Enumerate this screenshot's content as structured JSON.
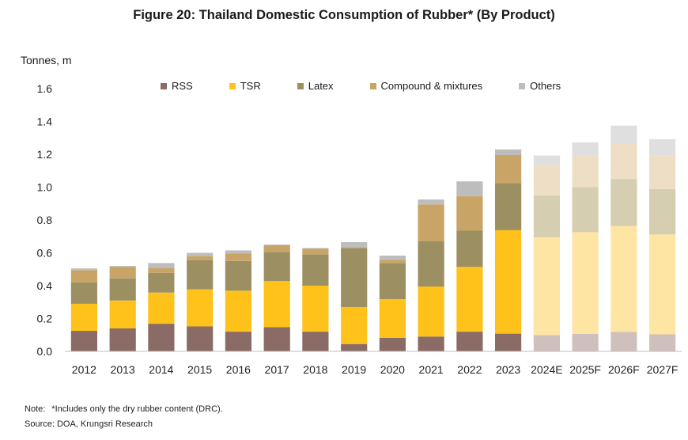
{
  "title": "Figure 20: Thailand Domestic Consumption of Rubber* (By Product)",
  "note": {
    "label": "Note:",
    "text": "*Includes only the dry rubber content (DRC)."
  },
  "source": "Source: DOA, Krungsri Research",
  "chart_data": {
    "type": "bar",
    "stacked": true,
    "ylabel": "Tonnes, m",
    "ylim": [
      0,
      1.6
    ],
    "yticks": [
      "0.0",
      "0.2",
      "0.4",
      "0.6",
      "0.8",
      "1.0",
      "1.2",
      "1.4",
      "1.6"
    ],
    "grid": false,
    "legend_position": "top",
    "categories": [
      "2012",
      "2013",
      "2014",
      "2015",
      "2016",
      "2017",
      "2018",
      "2019",
      "2020",
      "2021",
      "2022",
      "2023",
      "2024E",
      "2025F",
      "2026F",
      "2027F"
    ],
    "forecast_start_index": 12,
    "series": [
      {
        "name": "RSS",
        "color": "#8b6b65",
        "forecast_color": "#d0c0bd",
        "values": [
          0.125,
          0.14,
          0.168,
          0.152,
          0.12,
          0.148,
          0.12,
          0.045,
          0.083,
          0.09,
          0.12,
          0.108,
          0.1,
          0.106,
          0.118,
          0.104
        ]
      },
      {
        "name": "TSR",
        "color": "#ffc21a",
        "forecast_color": "#ffe5a3",
        "values": [
          0.165,
          0.17,
          0.19,
          0.225,
          0.25,
          0.28,
          0.28,
          0.225,
          0.235,
          0.305,
          0.395,
          0.63,
          0.595,
          0.62,
          0.645,
          0.608
        ]
      },
      {
        "name": "Latex",
        "color": "#9c8f62",
        "forecast_color": "#d5ceb0",
        "values": [
          0.13,
          0.135,
          0.12,
          0.178,
          0.18,
          0.178,
          0.19,
          0.36,
          0.22,
          0.275,
          0.22,
          0.287,
          0.255,
          0.275,
          0.287,
          0.277
        ]
      },
      {
        "name": "Compound & mixtures",
        "color": "#c8a466",
        "forecast_color": "#eddec5",
        "values": [
          0.075,
          0.07,
          0.03,
          0.025,
          0.045,
          0.04,
          0.035,
          0.005,
          0.02,
          0.225,
          0.21,
          0.17,
          0.18,
          0.19,
          0.215,
          0.205
        ]
      },
      {
        "name": "Others",
        "color": "#bdbdbd",
        "forecast_color": "#dfdfdf",
        "values": [
          0.01,
          0.005,
          0.03,
          0.02,
          0.02,
          0.005,
          0.005,
          0.03,
          0.025,
          0.03,
          0.09,
          0.035,
          0.063,
          0.082,
          0.11,
          0.098
        ]
      }
    ]
  }
}
